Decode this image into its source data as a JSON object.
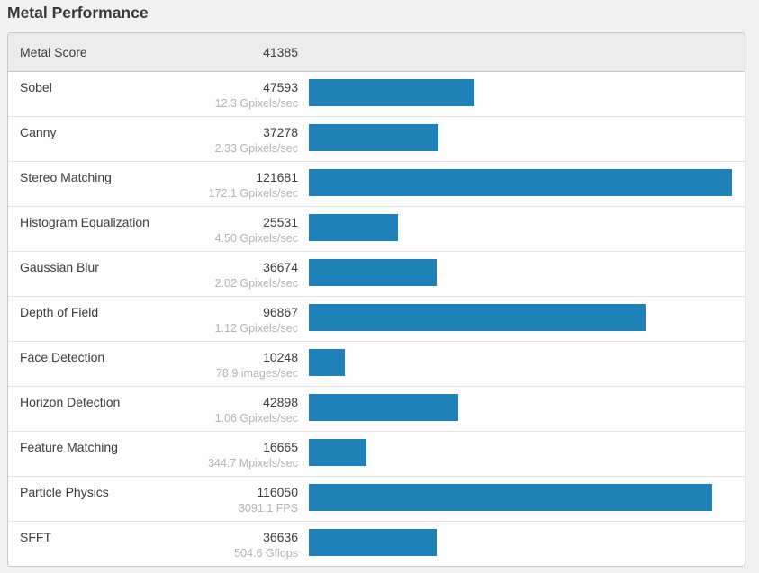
{
  "page": {
    "title": "Metal Performance",
    "background_color": "#f1f1f2"
  },
  "colors": {
    "bar_blue": "#1e81b8",
    "header_bg": "#ececec",
    "card_border": "#c8c8c8",
    "row_divider": "#e4e4e4",
    "text_dark": "#3c3c3c",
    "text_muted": "#b4b4b6"
  },
  "chart_data": {
    "type": "bar",
    "title": "Metal Performance",
    "orientation": "horizontal",
    "header": {
      "label": "Metal Score",
      "value": "41385"
    },
    "max_value": 121681,
    "xlim": [
      0,
      121681
    ],
    "rows": [
      {
        "label": "Sobel",
        "score": 47593,
        "rate": "12.3 Gpixels/sec"
      },
      {
        "label": "Canny",
        "score": 37278,
        "rate": "2.33 Gpixels/sec"
      },
      {
        "label": "Stereo Matching",
        "score": 121681,
        "rate": "172.1 Gpixels/sec"
      },
      {
        "label": "Histogram Equalization",
        "score": 25531,
        "rate": "4.50 Gpixels/sec"
      },
      {
        "label": "Gaussian Blur",
        "score": 36674,
        "rate": "2.02 Gpixels/sec"
      },
      {
        "label": "Depth of Field",
        "score": 96867,
        "rate": "1.12 Gpixels/sec"
      },
      {
        "label": "Face Detection",
        "score": 10248,
        "rate": "78.9 images/sec"
      },
      {
        "label": "Horizon Detection",
        "score": 42898,
        "rate": "1.06 Gpixels/sec"
      },
      {
        "label": "Feature Matching",
        "score": 16665,
        "rate": "344.7 Mpixels/sec"
      },
      {
        "label": "Particle Physics",
        "score": 116050,
        "rate": "3091.1 FPS"
      },
      {
        "label": "SFFT",
        "score": 36636,
        "rate": "504.6 Gflops"
      }
    ]
  }
}
